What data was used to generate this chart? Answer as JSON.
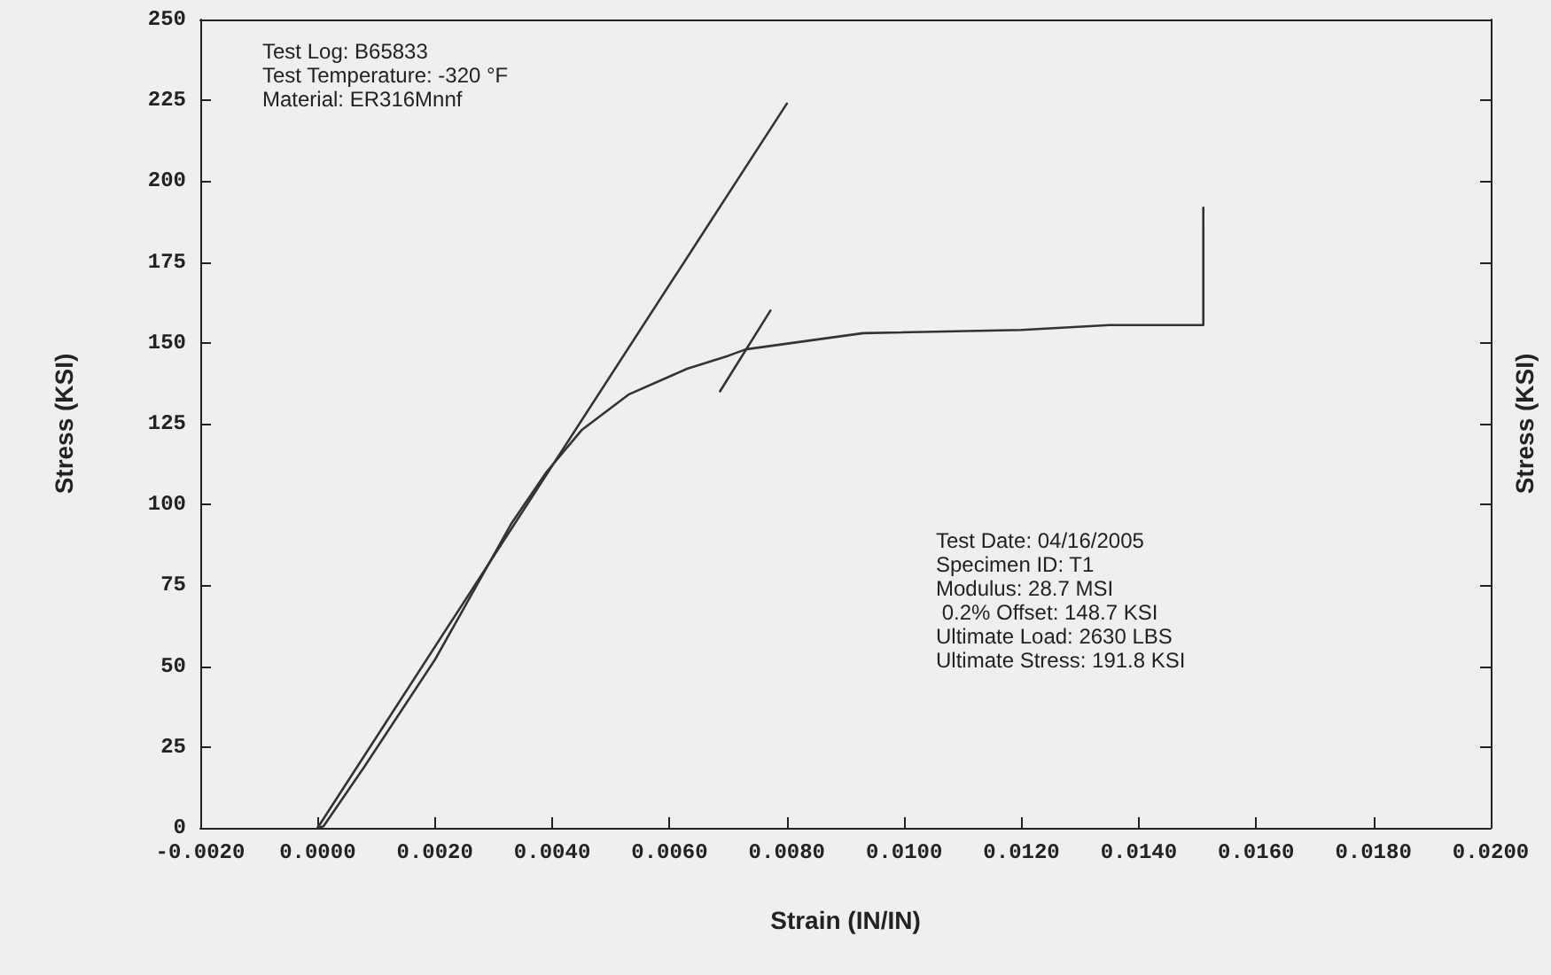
{
  "chart_data": {
    "type": "line",
    "xlabel": "Strain (IN/IN)",
    "ylabel": "Stress (KSI)",
    "y2label": "Stress (KSI)",
    "annotations": [
      "Test Log: B65833\nTest Temperature: -320 °F\nMaterial: ER316Mnnf",
      "Test Date: 04/16/2005\nSpecimen ID: T1\nModulus: 28.7 MSI\n 0.2% Offset: 148.7 KSI\nUltimate Load: 2630 LBS\nUltimate Stress: 191.8 KSI"
    ],
    "series": [
      {
        "color": "#333333",
        "x": [
          0,
          0.0001,
          0.0008,
          0.002,
          0.0033,
          0.0039,
          0.0045,
          0.0053,
          0.0063,
          0.007,
          0.0073,
          0.0093,
          0.012,
          0.0135,
          0.0151,
          0.0151
        ],
        "values": [
          0,
          0.5,
          19,
          52,
          94,
          110,
          123,
          134,
          142,
          146,
          148,
          153,
          154,
          155.5,
          155.5,
          191.8
        ]
      },
      {
        "color": "#333333",
        "x": [
          0,
          0.008
        ],
        "values": [
          0,
          224
        ]
      },
      {
        "color": "#333333",
        "x": [
          0.00686,
          0.00772
        ],
        "values": [
          135,
          160
        ]
      }
    ],
    "xlim": [
      -0.002,
      0.02
    ],
    "xticks": [
      {
        "value": -0.002,
        "label": "-0.0020"
      },
      {
        "value": 0,
        "label": "0.0000"
      },
      {
        "value": 0.002,
        "label": "0.0020"
      },
      {
        "value": 0.004,
        "label": "0.0040"
      },
      {
        "value": 0.006,
        "label": "0.0060"
      },
      {
        "value": 0.008,
        "label": "0.0080"
      },
      {
        "value": 0.01,
        "label": "0.0100"
      },
      {
        "value": 0.012,
        "label": "0.0120"
      },
      {
        "value": 0.014,
        "label": "0.0140"
      },
      {
        "value": 0.016,
        "label": "0.0160"
      },
      {
        "value": 0.018,
        "label": "0.0180"
      },
      {
        "value": 0.02,
        "label": "0.0200"
      }
    ],
    "ylim": [
      0,
      250
    ],
    "yticks": [
      0,
      25,
      50,
      75,
      100,
      125,
      150,
      175,
      200,
      225,
      250
    ],
    "grid": false,
    "marker": "none",
    "line_style": "solid"
  }
}
